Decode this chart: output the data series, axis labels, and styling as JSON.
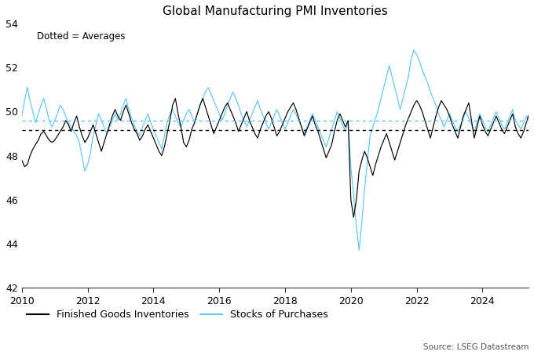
{
  "title": "Global Manufacturing PMI Inventories",
  "annotation": "Dotted = Averages",
  "source": "Source: LSEG Datastream",
  "legend": [
    "Finished Goods Inventories",
    "Stocks of Purchases"
  ],
  "line_colors": [
    "#000000",
    "#5bc8f5"
  ],
  "avg_colors": [
    "#000000",
    "#5bc8f5"
  ],
  "ylim": [
    42,
    54
  ],
  "yticks": [
    42,
    44,
    46,
    48,
    50,
    52,
    54
  ],
  "xlim_start": 2010.0,
  "xlim_end": 2025.4,
  "xticks": [
    2010,
    2012,
    2014,
    2016,
    2018,
    2020,
    2022,
    2024
  ],
  "avg_fgi": 49.15,
  "avg_sop": 49.58,
  "finished_goods": [
    47.8,
    47.5,
    47.6,
    48.0,
    48.3,
    48.5,
    48.7,
    49.0,
    49.1,
    48.9,
    48.7,
    48.6,
    48.7,
    48.9,
    49.1,
    49.3,
    49.6,
    49.4,
    49.1,
    49.5,
    49.8,
    49.3,
    48.9,
    48.6,
    48.8,
    49.1,
    49.4,
    49.0,
    48.6,
    48.2,
    48.6,
    49.0,
    49.4,
    49.8,
    50.1,
    49.8,
    49.6,
    50.0,
    50.3,
    49.9,
    49.5,
    49.2,
    49.0,
    48.7,
    48.9,
    49.2,
    49.4,
    49.1,
    48.8,
    48.5,
    48.2,
    48.0,
    48.4,
    49.0,
    49.6,
    50.3,
    50.6,
    49.9,
    49.3,
    48.6,
    48.4,
    48.7,
    49.2,
    49.5,
    49.9,
    50.3,
    50.6,
    50.2,
    49.8,
    49.4,
    49.0,
    49.3,
    49.6,
    49.9,
    50.2,
    50.4,
    50.1,
    49.8,
    49.5,
    49.1,
    49.4,
    49.7,
    50.0,
    49.6,
    49.3,
    49.0,
    48.8,
    49.2,
    49.5,
    49.8,
    50.0,
    49.7,
    49.3,
    48.9,
    49.1,
    49.4,
    49.7,
    50.0,
    50.2,
    50.4,
    50.1,
    49.7,
    49.3,
    48.9,
    49.2,
    49.5,
    49.8,
    49.4,
    49.1,
    48.7,
    48.3,
    47.9,
    48.2,
    48.5,
    49.1,
    49.6,
    49.9,
    49.6,
    49.3,
    49.6,
    46.0,
    45.2,
    46.0,
    47.3,
    47.8,
    48.2,
    47.9,
    47.5,
    47.1,
    47.6,
    48.0,
    48.4,
    48.7,
    49.0,
    48.6,
    48.2,
    47.8,
    48.2,
    48.6,
    49.0,
    49.4,
    49.7,
    50.0,
    50.3,
    50.5,
    50.3,
    50.0,
    49.6,
    49.2,
    48.8,
    49.3,
    49.8,
    50.2,
    50.5,
    50.3,
    50.1,
    49.8,
    49.4,
    49.1,
    48.8,
    49.3,
    49.8,
    50.1,
    50.4,
    49.6,
    48.8,
    49.3,
    49.8,
    49.4,
    49.1,
    48.9,
    49.2,
    49.5,
    49.8,
    49.5,
    49.2,
    49.0,
    49.3,
    49.6,
    49.9,
    49.3,
    49.0,
    48.8,
    49.1,
    49.5,
    49.9,
    49.6,
    49.3,
    49.5,
    49.3
  ],
  "stocks_of_purchases": [
    49.8,
    50.5,
    51.1,
    50.5,
    50.0,
    49.5,
    49.9,
    50.3,
    50.6,
    50.1,
    49.6,
    49.3,
    49.6,
    49.9,
    50.3,
    50.1,
    49.8,
    49.5,
    49.3,
    49.1,
    48.9,
    48.6,
    47.9,
    47.3,
    47.6,
    48.1,
    48.9,
    49.4,
    49.9,
    49.6,
    49.3,
    49.0,
    49.3,
    49.6,
    49.9,
    49.6,
    49.9,
    50.3,
    50.6,
    50.1,
    49.7,
    49.4,
    49.1,
    48.9,
    49.3,
    49.6,
    49.9,
    49.5,
    49.2,
    48.9,
    48.6,
    48.3,
    48.9,
    49.5,
    49.9,
    50.1,
    49.8,
    49.5,
    49.3,
    49.6,
    49.9,
    50.1,
    49.8,
    49.5,
    49.9,
    50.3,
    50.6,
    50.9,
    51.1,
    50.8,
    50.5,
    50.2,
    49.9,
    49.6,
    49.9,
    50.3,
    50.6,
    50.9,
    50.6,
    50.3,
    49.9,
    49.6,
    49.3,
    49.6,
    49.9,
    50.2,
    50.5,
    50.1,
    49.8,
    49.5,
    49.2,
    49.5,
    49.8,
    50.1,
    49.8,
    49.5,
    49.2,
    49.5,
    49.8,
    50.1,
    49.9,
    49.6,
    49.3,
    49.0,
    49.3,
    49.6,
    49.9,
    49.6,
    49.3,
    49.0,
    48.7,
    48.4,
    48.8,
    49.2,
    49.6,
    50.0,
    49.7,
    49.4,
    49.1,
    49.5,
    47.5,
    46.2,
    44.8,
    43.7,
    45.0,
    46.5,
    47.7,
    48.9,
    49.3,
    49.7,
    50.1,
    50.6,
    51.1,
    51.6,
    52.1,
    51.6,
    51.1,
    50.6,
    50.1,
    50.6,
    51.1,
    51.6,
    52.4,
    52.8,
    52.6,
    52.3,
    51.9,
    51.6,
    51.3,
    50.9,
    50.6,
    50.3,
    49.9,
    49.6,
    49.3,
    49.6,
    49.9,
    49.6,
    49.3,
    49.1,
    49.4,
    49.7,
    50.0,
    49.7,
    49.4,
    49.1,
    49.5,
    49.9,
    49.6,
    49.3,
    49.1,
    49.4,
    49.7,
    50.0,
    49.7,
    49.4,
    49.2,
    49.5,
    49.8,
    50.1,
    49.6,
    49.4,
    49.2,
    49.5,
    49.8,
    49.6,
    49.4,
    49.2,
    49.5,
    49.3
  ]
}
